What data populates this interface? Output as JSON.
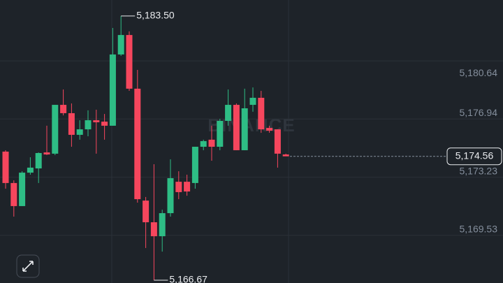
{
  "chart_data": {
    "type": "candlestick",
    "watermark": "BINANCE",
    "up_color": "#2ebd85",
    "down_color": "#f6465d",
    "ylim": [
      5166.49,
      5184.52
    ],
    "yticks": [
      {
        "value": 5180.64,
        "label": "5,180.64"
      },
      {
        "value": 5176.94,
        "label": "5,176.94"
      },
      {
        "value": 5173.23,
        "label": "5,173.23"
      },
      {
        "value": 5169.53,
        "label": "5,169.53"
      }
    ],
    "grid": true,
    "open": [
      5174.86,
      5172.86,
      5171.39,
      5173.52,
      5173.79,
      5174.81,
      5174.73,
      5177.84,
      5177.31,
      5175.93,
      5176.28,
      5176.86,
      5176.77,
      5176.51,
      5181.05,
      5182.29,
      5178.87,
      5171.74,
      5170.36,
      5169.47,
      5170.94,
      5172.94,
      5172.94,
      5172.86,
      5175.17,
      5175.62,
      5175.17,
      5176.82,
      5177.84,
      5174.95,
      5177.84,
      5178.29,
      5176.37,
      5176.28,
      5174.68
    ],
    "high": [
      5174.95,
      5173.03,
      5173.61,
      5174.5,
      5174.81,
      5176.51,
      5177.84,
      5178.82,
      5177.93,
      5176.86,
      5177.49,
      5177.53,
      5177.26,
      5182.74,
      5183.5,
      5182.52,
      5180.07,
      5171.97,
      5174.06,
      5171.16,
      5174.37,
      5173.61,
      5173.39,
      5175.17,
      5175.62,
      5176.51,
      5176.95,
      5178.82,
      5177.93,
      5178.87,
      5178.95,
      5178.73,
      5176.51,
      5176.28,
      5174.73
    ],
    "low": [
      5172.5,
      5170.72,
      5171.39,
      5173.39,
      5172.86,
      5174.64,
      5174.64,
      5177.17,
      5175.17,
      5175.62,
      5175.84,
      5174.73,
      5175.62,
      5176.51,
      5180.96,
      5178.73,
      5171.61,
      5168.72,
      5166.67,
      5168.49,
      5170.72,
      5171.83,
      5172.05,
      5172.5,
      5174.95,
      5174.28,
      5174.95,
      5176.51,
      5174.95,
      5174.95,
      5177.4,
      5176.06,
      5176.06,
      5173.84,
      5174.6
    ],
    "close": [
      5172.86,
      5171.39,
      5173.52,
      5173.84,
      5174.77,
      5174.68,
      5177.84,
      5177.31,
      5175.93,
      5176.28,
      5176.86,
      5176.73,
      5176.51,
      5181.05,
      5182.29,
      5178.87,
      5171.83,
      5170.36,
      5169.47,
      5170.94,
      5173.17,
      5172.28,
      5172.32,
      5175.17,
      5175.53,
      5175.17,
      5176.82,
      5177.84,
      5174.95,
      5177.62,
      5178.29,
      5176.28,
      5176.19,
      5174.73,
      5174.56
    ],
    "high_label": {
      "value": 5183.5,
      "label": "5,183.50"
    },
    "low_label": {
      "value": 5166.67,
      "label": "5,166.67"
    },
    "last_price": {
      "value": 5174.56,
      "label": "5,174.56"
    }
  }
}
